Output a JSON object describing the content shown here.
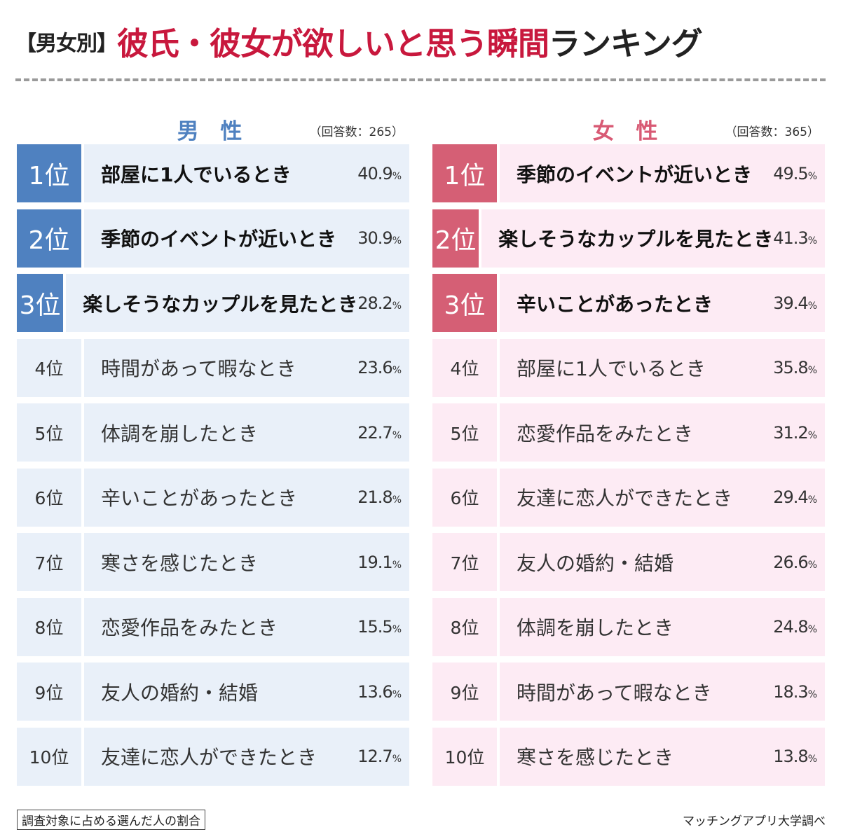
{
  "title": {
    "prefix": "【男女別】",
    "main_red": "彼氏・彼女が欲しいと思う瞬間",
    "suffix": "ランキング"
  },
  "colors": {
    "men_accent": "#4f81c0",
    "women_accent": "#d55f75",
    "title_red": "#c8183d"
  },
  "chart_data": [
    {
      "type": "table",
      "title": "男 性",
      "respondents": "（回答数：265）",
      "rows": [
        {
          "rank": "1位",
          "label": "部屋に1人でいるとき",
          "value": 40.9,
          "display": "40.9",
          "unit": "%"
        },
        {
          "rank": "2位",
          "label": "季節のイベントが近いとき",
          "value": 30.9,
          "display": "30.9",
          "unit": "%"
        },
        {
          "rank": "3位",
          "label": "楽しそうなカップルを見たとき",
          "value": 28.2,
          "display": "28.2",
          "unit": "%"
        },
        {
          "rank": "4位",
          "label": "時間があって暇なとき",
          "value": 23.6,
          "display": "23.6",
          "unit": "%"
        },
        {
          "rank": "5位",
          "label": "体調を崩したとき",
          "value": 22.7,
          "display": "22.7",
          "unit": "%"
        },
        {
          "rank": "6位",
          "label": "辛いことがあったとき",
          "value": 21.8,
          "display": "21.8",
          "unit": "%"
        },
        {
          "rank": "7位",
          "label": "寒さを感じたとき",
          "value": 19.1,
          "display": "19.1",
          "unit": "%"
        },
        {
          "rank": "8位",
          "label": "恋愛作品をみたとき",
          "value": 15.5,
          "display": "15.5",
          "unit": "%"
        },
        {
          "rank": "9位",
          "label": "友人の婚約・結婚",
          "value": 13.6,
          "display": "13.6",
          "unit": "%"
        },
        {
          "rank": "10位",
          "label": "友達に恋人ができたとき",
          "value": 12.7,
          "display": "12.7",
          "unit": "%"
        }
      ]
    },
    {
      "type": "table",
      "title": "女 性",
      "respondents": "（回答数：365）",
      "rows": [
        {
          "rank": "1位",
          "label": "季節のイベントが近いとき",
          "value": 49.5,
          "display": "49.5",
          "unit": "%"
        },
        {
          "rank": "2位",
          "label": "楽しそうなカップルを見たとき",
          "value": 41.3,
          "display": "41.3",
          "unit": "%"
        },
        {
          "rank": "3位",
          "label": "辛いことがあったとき",
          "value": 39.4,
          "display": "39.4",
          "unit": "%"
        },
        {
          "rank": "4位",
          "label": "部屋に1人でいるとき",
          "value": 35.8,
          "display": "35.8",
          "unit": "%"
        },
        {
          "rank": "5位",
          "label": "恋愛作品をみたとき",
          "value": 31.2,
          "display": "31.2",
          "unit": "%"
        },
        {
          "rank": "6位",
          "label": "友達に恋人ができたとき",
          "value": 29.4,
          "display": "29.4",
          "unit": "%"
        },
        {
          "rank": "7位",
          "label": "友人の婚約・結婚",
          "value": 26.6,
          "display": "26.6",
          "unit": "%"
        },
        {
          "rank": "8位",
          "label": "体調を崩したとき",
          "value": 24.8,
          "display": "24.8",
          "unit": "%"
        },
        {
          "rank": "9位",
          "label": "時間があって暇なとき",
          "value": 18.3,
          "display": "18.3",
          "unit": "%"
        },
        {
          "rank": "10位",
          "label": "寒さを感じたとき",
          "value": 13.8,
          "display": "13.8",
          "unit": "%"
        }
      ]
    }
  ],
  "footnote": "調査対象に占める選んだ人の割合",
  "source": "マッチングアプリ大学調べ"
}
